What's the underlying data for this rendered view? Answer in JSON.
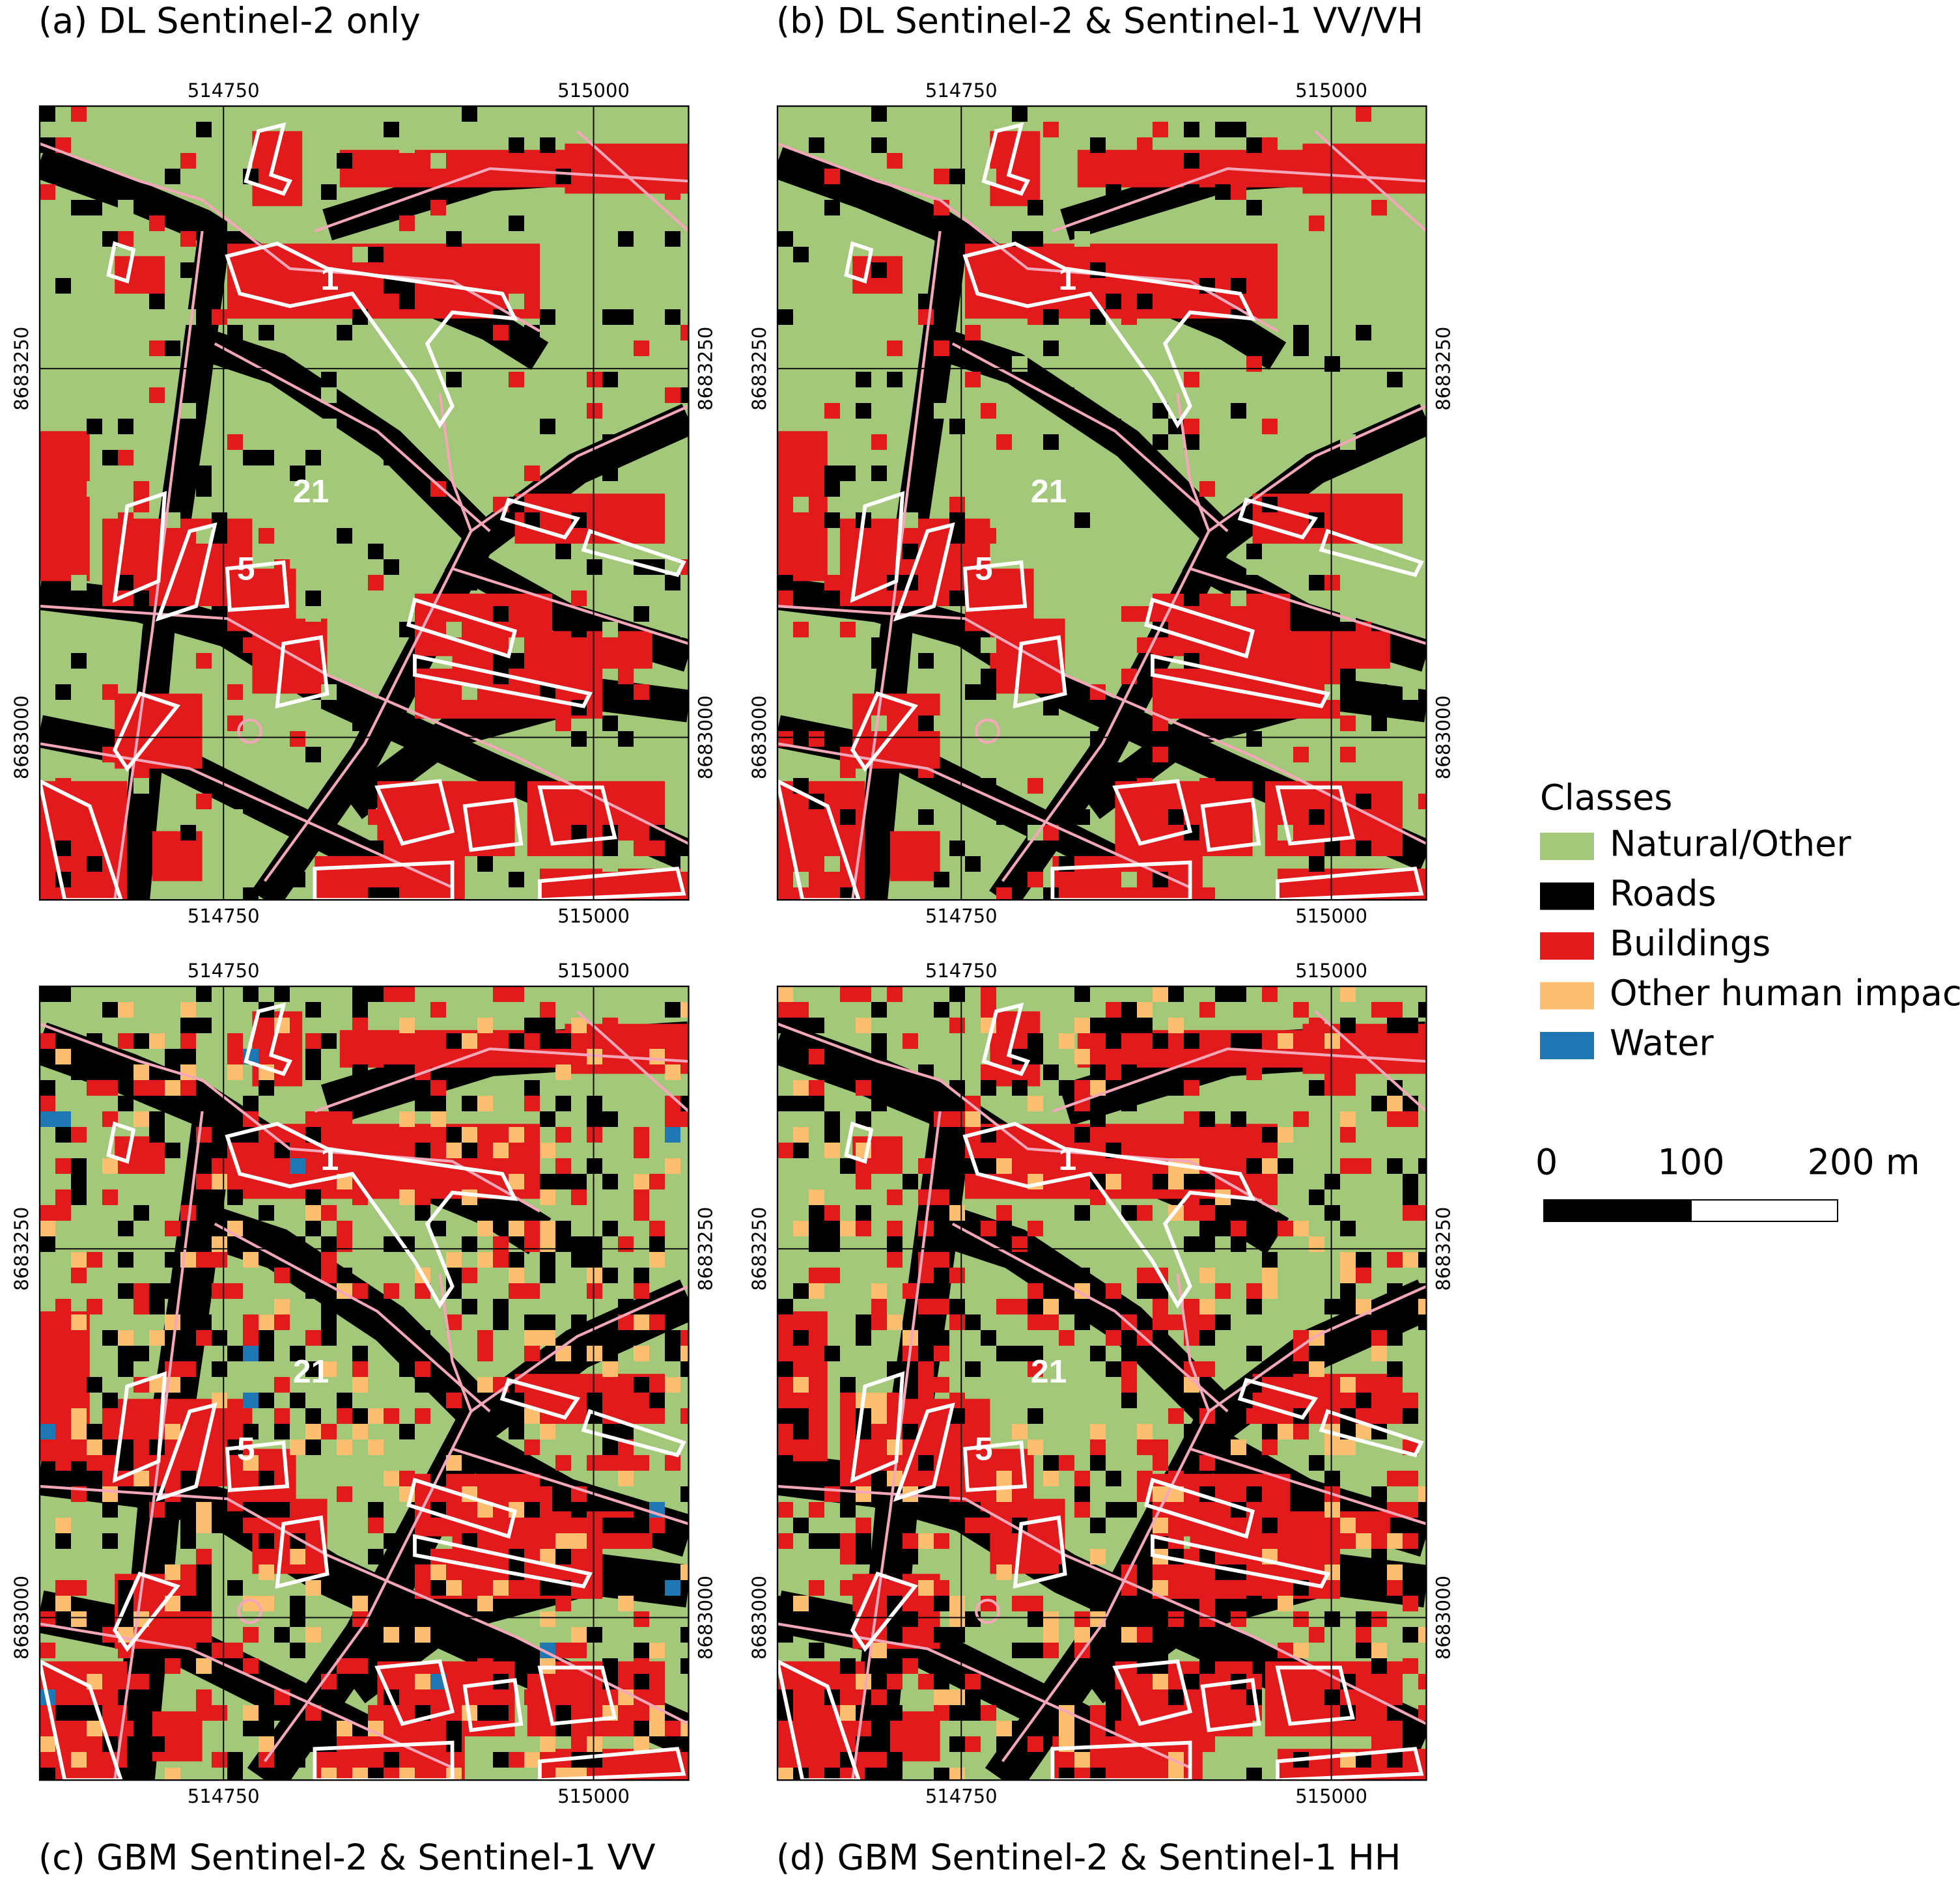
{
  "panels": [
    {
      "title": "(a) DL Sentinel-2 only"
    },
    {
      "title": "(b) DL Sentinel-2 & Sentinel-1 VV/VH"
    },
    {
      "title": "(c) GBM Sentinel-2 & Sentinel-1 VV"
    },
    {
      "title": "(d) GBM Sentinel-2 & Sentinel-1 HH"
    }
  ],
  "grid_labels": {
    "x": [
      "514750",
      "515000"
    ],
    "y": [
      "8683250",
      "8683000"
    ]
  },
  "map_labels": [
    "1",
    "21",
    "5"
  ],
  "legend": {
    "title": "Classes",
    "items": [
      {
        "label": "Natural/Other",
        "color": "#a3c87a"
      },
      {
        "label": "Roads",
        "color": "#000000"
      },
      {
        "label": "Buildings",
        "color": "#e31a1c"
      },
      {
        "label": "Other human impact",
        "color": "#fdbf6f"
      },
      {
        "label": "Water",
        "color": "#1f78b4"
      }
    ]
  },
  "scale_bar": {
    "labels": [
      "0",
      "100",
      "200 m"
    ]
  }
}
